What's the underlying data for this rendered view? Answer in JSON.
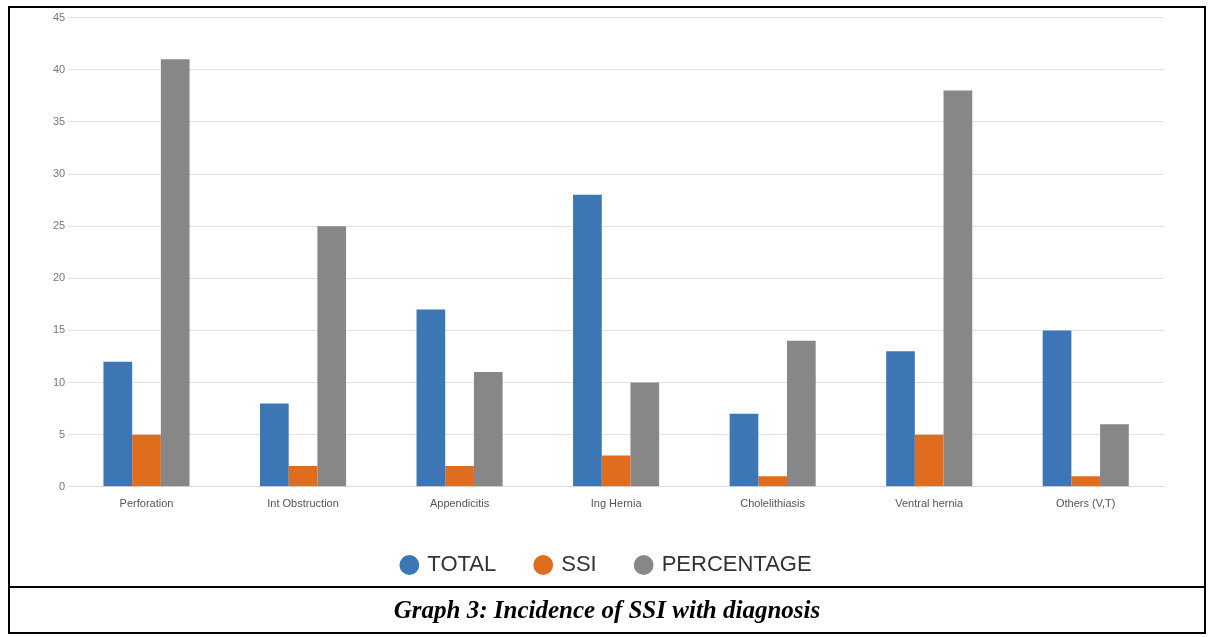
{
  "chart_data": {
    "type": "bar",
    "title": "Graph 3: Incidence of SSI with diagnosis",
    "categories": [
      "Perforation",
      "Int Obstruction",
      "Appendicitis",
      "Ing Hernia",
      "Cholelithiasis",
      "Ventral hernia",
      "Others (V,T)"
    ],
    "series": [
      {
        "name": "TOTAL",
        "color": "#3d76b4",
        "values": [
          12,
          8,
          17,
          28,
          7,
          13,
          15
        ]
      },
      {
        "name": "SSI",
        "color": "#e06c1e",
        "values": [
          5,
          2,
          2,
          3,
          1,
          5,
          1
        ]
      },
      {
        "name": "PERCENTAGE",
        "color": "#878787",
        "values": [
          41,
          25,
          11,
          10,
          14,
          38,
          6
        ]
      }
    ],
    "ylim": [
      0,
      45
    ],
    "yticks": [
      0,
      5,
      10,
      15,
      20,
      25,
      30,
      35,
      40,
      45
    ],
    "grid": "y",
    "legend": "bottom"
  }
}
